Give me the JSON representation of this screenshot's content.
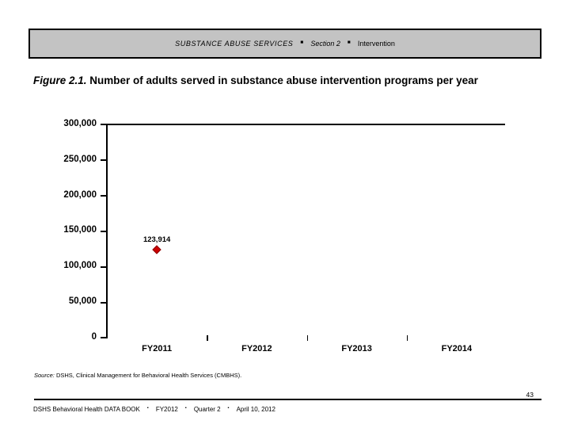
{
  "header_bar": {
    "title": "SUBSTANCE ABUSE SERVICES",
    "bullet": "■",
    "section": "Section 2",
    "topic": "Intervention",
    "bg_color": "#c3c3c3"
  },
  "figure": {
    "label": "Figure 2.1.",
    "title": "Number of adults served in substance abuse intervention programs per year"
  },
  "chart_data": {
    "type": "scatter",
    "title": "",
    "categories": [
      "FY2011",
      "FY2012",
      "FY2013",
      "FY2014"
    ],
    "series": [
      {
        "name": "Number of adults served",
        "marker": "diamond",
        "color": "#cc0000",
        "values": [
          123914,
          null,
          null,
          null
        ]
      }
    ],
    "point_labels": [
      "123,914"
    ],
    "xlabel": "",
    "ylabel": "",
    "ylim": [
      0,
      300000
    ],
    "ytick_step": 50000,
    "ytick_labels": [
      "300,000",
      "250,000",
      "200,000",
      "150,000",
      "100,000",
      "50,000",
      "0"
    ],
    "grid": false,
    "legend_position": "none"
  },
  "source_note": {
    "label": "Source:",
    "text": "DSHS, Clinical Management for Behavioral Health Services (CMBHS)."
  },
  "footer": {
    "page_number": "43",
    "book_title": "DSHS Behavioral Health DATA BOOK",
    "bullet": "▪",
    "items": [
      "FY2012",
      "Quarter 2",
      "April 10, 2012"
    ]
  }
}
